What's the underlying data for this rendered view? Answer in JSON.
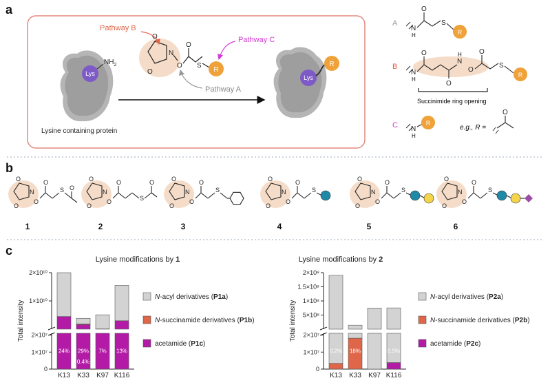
{
  "panel_a": {
    "letter": "a",
    "pathway_b": "Pathway B",
    "pathway_c": "Pathway C",
    "pathway_a": "Pathway A",
    "lys": "Lys",
    "nh2": "NH",
    "nh2_sub": "2",
    "r": "R",
    "protein_caption": "Lysine containing protein",
    "label_A": "A",
    "label_B": "B",
    "label_C": "C",
    "ring_opening": "Succinimide ring opening",
    "eg_text": "e.g., R =",
    "atom_O": "O",
    "atom_N": "N",
    "atom_S": "S",
    "atom_H": "H"
  },
  "panel_b": {
    "letter": "b",
    "molecules": [
      "1",
      "2",
      "3",
      "4",
      "5",
      "6"
    ]
  },
  "panel_c": {
    "letter": "c",
    "colors": {
      "acyl": "#d3d3d3",
      "succ": "#e0664a",
      "acet": "#b31aa6"
    },
    "legend_left": [
      {
        "pre": "N",
        "text": "-acyl derivatives (",
        "bold": "P1a",
        "post": ")"
      },
      {
        "pre": "N",
        "text": "-succinamide derivatives (",
        "bold": "P1b",
        "post": ")"
      },
      {
        "pre": "",
        "text": "acetamide (",
        "bold": "P1c",
        "post": ")"
      }
    ],
    "legend_right": [
      {
        "pre": "N",
        "text": "-acyl derivatives (",
        "bold": "P2a",
        "post": ")"
      },
      {
        "pre": "N",
        "text": "-succinamide derivatives (",
        "bold": "P2b",
        "post": ")"
      },
      {
        "pre": "",
        "text": "acetamide (",
        "bold": "P2c",
        "post": ")"
      }
    ]
  },
  "chart_data": [
    {
      "type": "bar",
      "title_text": "Lysine modifications by ",
      "title_bold": "1",
      "ylabel": "Total intensity",
      "stacked": true,
      "broken_axis": true,
      "categories": [
        "K13",
        "K33",
        "K97",
        "K116"
      ],
      "upper_ticks": [
        "2×10¹⁰",
        "1×10¹⁰"
      ],
      "lower_ticks": [
        "2×10⁷",
        "1×10⁷",
        "0"
      ],
      "series": [
        {
          "name": "N-acyl derivatives (P1a)",
          "values": [
            17300000000.0,
            2000000000.0,
            5000000000.0,
            12500000000.0
          ]
        },
        {
          "name": "N-succinamide derivatives (P1b)",
          "values": [
            0,
            60000000.0,
            0,
            0
          ]
        },
        {
          "name": "acetamide (P1c)",
          "values": [
            4500000000.0,
            1800000000.0,
            100000000.0,
            3000000000.0
          ]
        }
      ],
      "bar_labels": [
        [
          "24%"
        ],
        [
          "29%",
          "0.4%"
        ],
        [
          "7%"
        ],
        [
          "13%"
        ]
      ]
    },
    {
      "type": "bar",
      "title_text": "Lysine modifications by ",
      "title_bold": "2",
      "ylabel": "Total intensity",
      "stacked": true,
      "broken_axis": true,
      "categories": [
        "K13",
        "K33",
        "K97",
        "K116"
      ],
      "upper_ticks": [
        "2×10⁹",
        "1.5×10⁹",
        "1×10⁹",
        "5×10⁸"
      ],
      "lower_ticks": [
        "2×10⁷",
        "1×10⁷",
        "0"
      ],
      "series": [
        {
          "name": "N-acyl derivatives (P2a)",
          "values": [
            2000000000.0,
            150000000.0,
            800000000.0,
            800000000.0
          ]
        },
        {
          "name": "N-succinamide derivatives (P2b)",
          "values": [
            3500000.0,
            19000000.0,
            0,
            0
          ]
        },
        {
          "name": "acetamide (P2c)",
          "values": [
            0,
            0,
            0,
            4000000.0
          ]
        }
      ],
      "bar_labels": [
        [
          "0.2%"
        ],
        [
          "18%"
        ],
        [],
        [
          "0.5%"
        ]
      ]
    }
  ]
}
